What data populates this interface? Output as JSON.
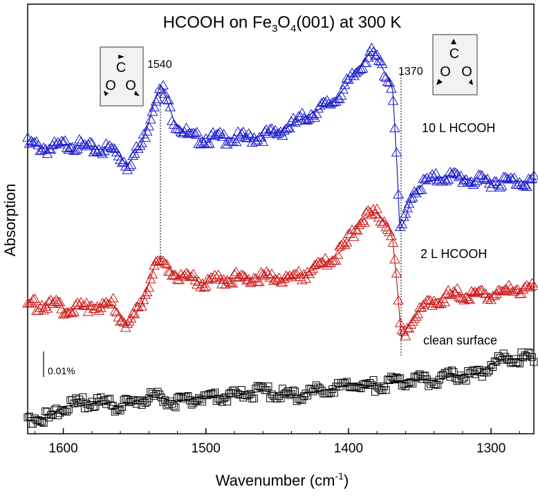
{
  "chart_data": {
    "type": "scatter",
    "title": {
      "base": "HCOOH on Fe",
      "sub1": "3",
      "mid": "O",
      "sub2": "4",
      "end": "(001) at 300 K"
    },
    "xlabel": {
      "main": "Wavenumber (cm",
      "sup": "-1",
      "close": ")"
    },
    "ylabel": "Absorption",
    "x_reversed": true,
    "xlim": [
      1625,
      1270
    ],
    "xticks": [
      "1600",
      "1500",
      "1400",
      "1300"
    ],
    "xtick_values": [
      1600,
      1500,
      1400,
      1300
    ],
    "scale_bar_label": "0.01%",
    "annotations": [
      {
        "text": "1540",
        "x": 1535
      },
      {
        "text": "1370",
        "x": 1364
      }
    ],
    "formate_icons": [
      {
        "C": "C",
        "O1": "O",
        "O2": "O"
      },
      {
        "C": "C",
        "O1": "O",
        "O2": "O"
      }
    ],
    "series": [
      {
        "name": "10 L HCOOH",
        "color": "#1a1acc",
        "marker": "triangle",
        "points": [
          [
            1625,
            0.54
          ],
          [
            1610,
            0.53
          ],
          [
            1595,
            0.54
          ],
          [
            1580,
            0.53
          ],
          [
            1565,
            0.53
          ],
          [
            1555,
            0.5
          ],
          [
            1545,
            0.54
          ],
          [
            1540,
            0.58
          ],
          [
            1535,
            0.63
          ],
          [
            1530,
            0.64
          ],
          [
            1522,
            0.58
          ],
          [
            1510,
            0.55
          ],
          [
            1490,
            0.55
          ],
          [
            1470,
            0.55
          ],
          [
            1450,
            0.56
          ],
          [
            1430,
            0.59
          ],
          [
            1410,
            0.62
          ],
          [
            1395,
            0.67
          ],
          [
            1385,
            0.71
          ],
          [
            1378,
            0.69
          ],
          [
            1372,
            0.66
          ],
          [
            1369,
            0.64
          ],
          [
            1366,
            0.5
          ],
          [
            1364,
            0.38
          ],
          [
            1360,
            0.4
          ],
          [
            1355,
            0.45
          ],
          [
            1345,
            0.47
          ],
          [
            1330,
            0.48
          ],
          [
            1310,
            0.47
          ],
          [
            1290,
            0.47
          ],
          [
            1270,
            0.47
          ]
        ]
      },
      {
        "name": "2 L  HCOOH",
        "color": "#cc1a1a",
        "marker": "triangle",
        "points": [
          [
            1625,
            0.24
          ],
          [
            1610,
            0.24
          ],
          [
            1595,
            0.23
          ],
          [
            1580,
            0.24
          ],
          [
            1565,
            0.24
          ],
          [
            1555,
            0.2
          ],
          [
            1545,
            0.24
          ],
          [
            1540,
            0.28
          ],
          [
            1535,
            0.32
          ],
          [
            1528,
            0.31
          ],
          [
            1515,
            0.29
          ],
          [
            1500,
            0.28
          ],
          [
            1485,
            0.29
          ],
          [
            1460,
            0.29
          ],
          [
            1440,
            0.29
          ],
          [
            1420,
            0.31
          ],
          [
            1405,
            0.34
          ],
          [
            1390,
            0.4
          ],
          [
            1380,
            0.41
          ],
          [
            1372,
            0.39
          ],
          [
            1369,
            0.36
          ],
          [
            1366,
            0.28
          ],
          [
            1363,
            0.18
          ],
          [
            1358,
            0.2
          ],
          [
            1350,
            0.23
          ],
          [
            1340,
            0.25
          ],
          [
            1320,
            0.26
          ],
          [
            1300,
            0.26
          ],
          [
            1280,
            0.27
          ],
          [
            1270,
            0.27
          ]
        ]
      },
      {
        "name": "clean surface",
        "color": "#000000",
        "marker": "square",
        "points": [
          [
            1625,
            0.03
          ],
          [
            1610,
            0.03
          ],
          [
            1600,
            0.05
          ],
          [
            1580,
            0.06
          ],
          [
            1560,
            0.05
          ],
          [
            1540,
            0.07
          ],
          [
            1520,
            0.06
          ],
          [
            1500,
            0.07
          ],
          [
            1480,
            0.07
          ],
          [
            1460,
            0.08
          ],
          [
            1440,
            0.07
          ],
          [
            1420,
            0.08
          ],
          [
            1400,
            0.09
          ],
          [
            1380,
            0.09
          ],
          [
            1360,
            0.1
          ],
          [
            1340,
            0.1
          ],
          [
            1320,
            0.11
          ],
          [
            1310,
            0.11
          ],
          [
            1300,
            0.13
          ],
          [
            1290,
            0.14
          ],
          [
            1280,
            0.14
          ],
          [
            1270,
            0.14
          ]
        ]
      }
    ],
    "ylim": [
      0,
      0.8
    ]
  }
}
